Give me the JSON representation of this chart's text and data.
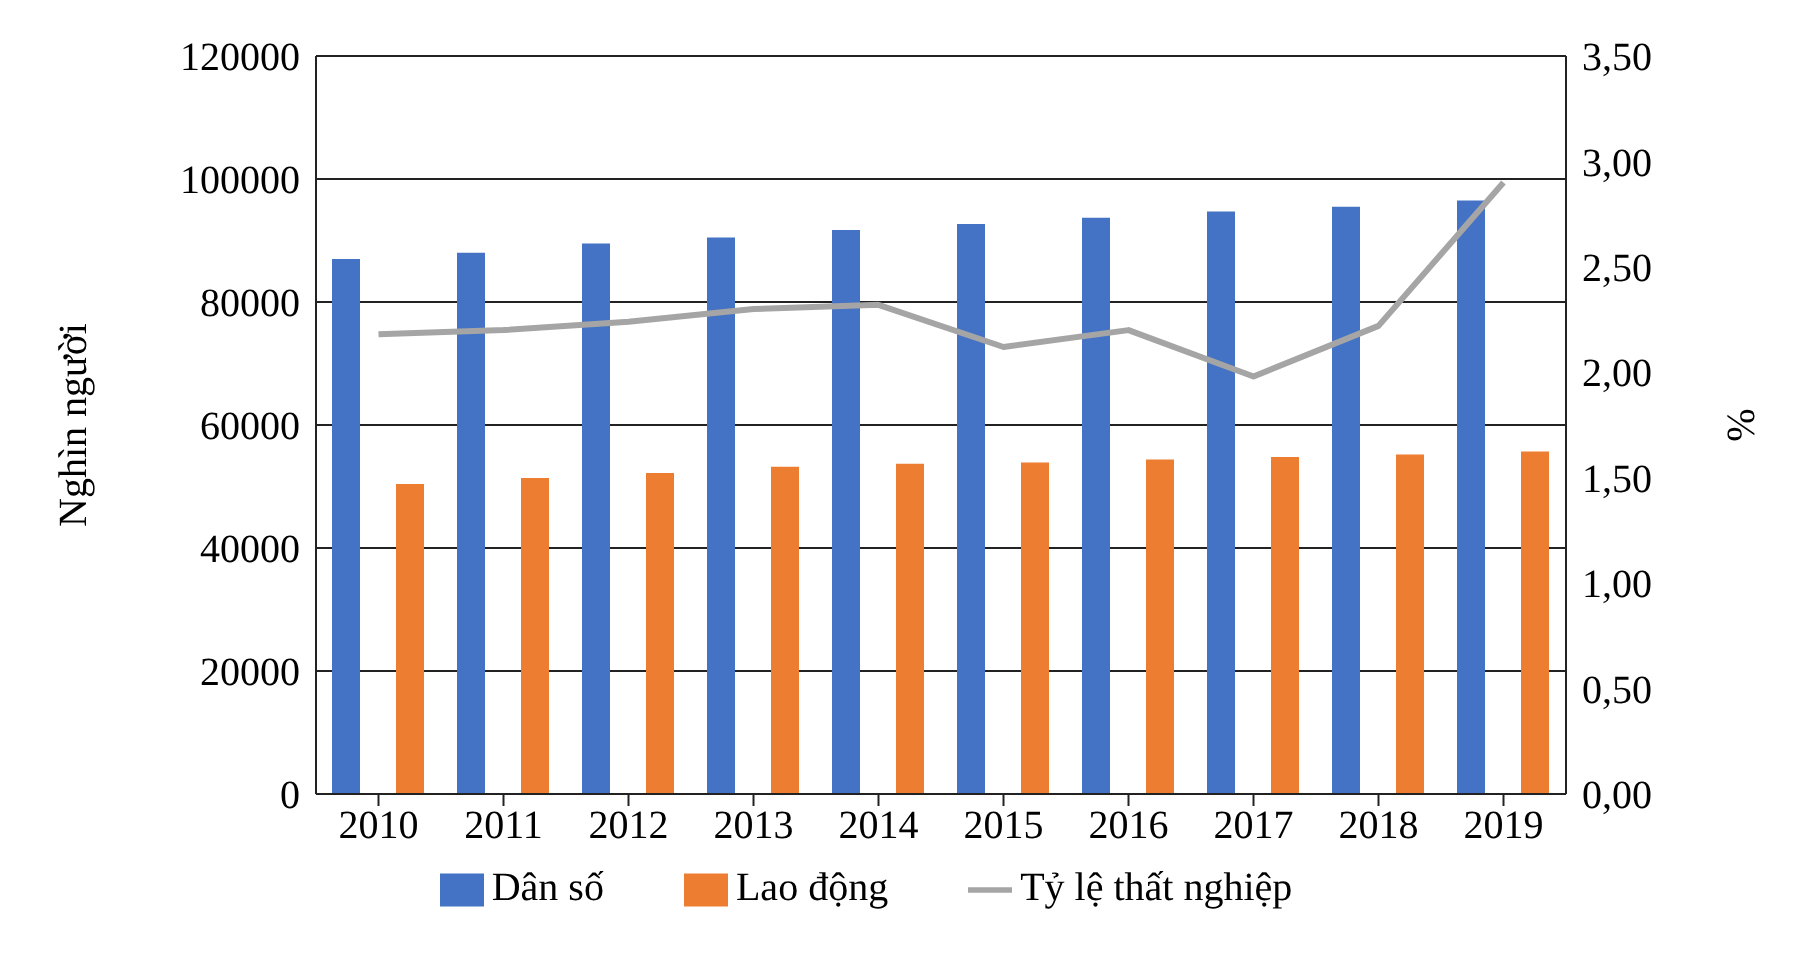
{
  "chart_data": {
    "type": "bar",
    "ylabel": "Nghìn người",
    "y2label": "%",
    "categories": [
      "2010",
      "2011",
      "2012",
      "2013",
      "2014",
      "2015",
      "2016",
      "2017",
      "2018",
      "2019"
    ],
    "series": [
      {
        "name": "Dân số",
        "color": "#4472c4",
        "values": [
          87000,
          88000,
          89500,
          90500,
          91700,
          92700,
          93700,
          94700,
          95500,
          96500
        ]
      },
      {
        "name": "Lao động",
        "color": "#ed7d31",
        "values": [
          50400,
          51400,
          52200,
          53200,
          53700,
          53900,
          54400,
          54800,
          55200,
          55700
        ]
      },
      {
        "name": "Tỷ lệ thất nghiệp",
        "type": "line",
        "axis": "y2",
        "color": "#a5a5a5",
        "values": [
          2.18,
          2.2,
          2.24,
          2.3,
          2.32,
          2.12,
          2.2,
          1.98,
          2.22,
          2.9
        ]
      }
    ],
    "ylim": [
      0,
      120000
    ],
    "yticks": [
      0,
      20000,
      40000,
      60000,
      80000,
      100000,
      120000
    ],
    "y2lim": [
      0,
      3.5
    ],
    "y2ticks": [
      {
        "value": 0,
        "label": "0,00"
      },
      {
        "value": 0.5,
        "label": "0,50"
      },
      {
        "value": 1,
        "label": "1,00"
      },
      {
        "value": 1.5,
        "label": "1,50"
      },
      {
        "value": 2,
        "label": "2,00"
      },
      {
        "value": 2.5,
        "label": "2,50"
      },
      {
        "value": 3,
        "label": "3,00"
      },
      {
        "value": 3.5,
        "label": "3,50"
      }
    ],
    "grid": "y",
    "legend": "bottom",
    "marker": "none"
  }
}
